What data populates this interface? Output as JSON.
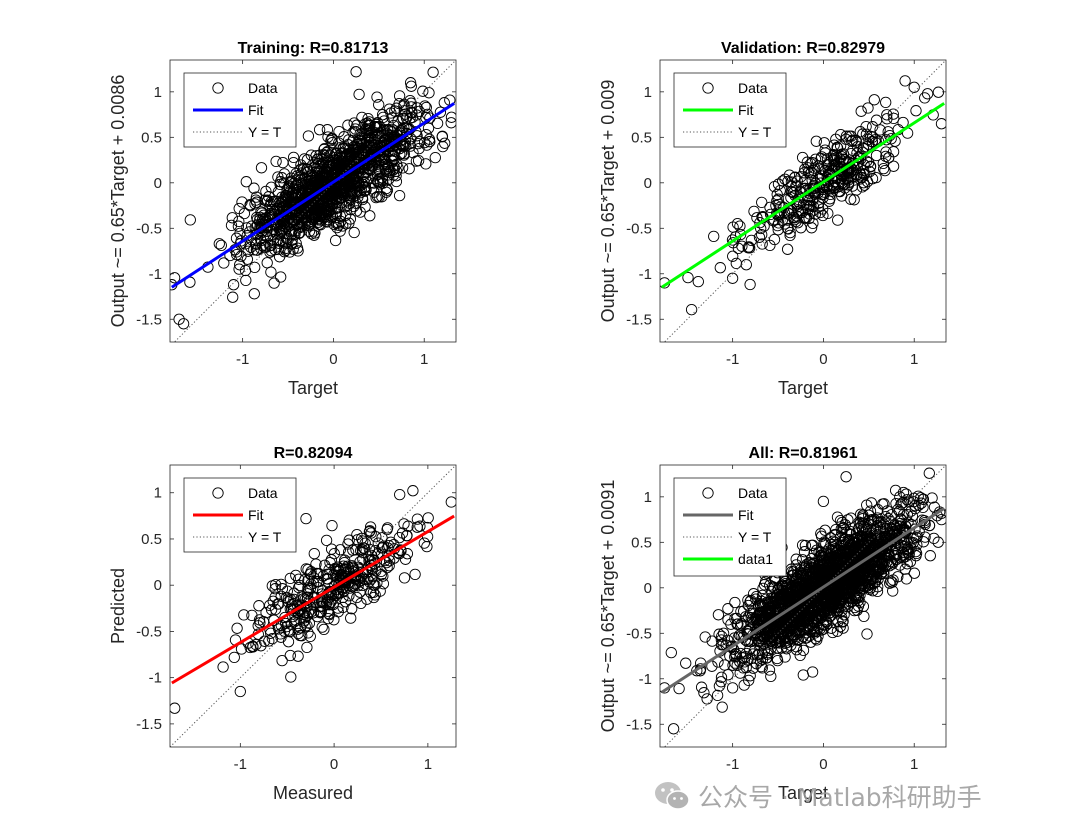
{
  "watermark": {
    "text": "公众号 · Matlab科研助手",
    "icon": "wechat-icon"
  },
  "chart_data": [
    {
      "type": "scatter",
      "id": "training",
      "title": "Training: R=0.81713",
      "xlabel": "Target",
      "ylabel": "Output ~= 0.65*Target + 0.0086",
      "xlim": [
        -1.8,
        1.35
      ],
      "ylim": [
        -1.75,
        1.35
      ],
      "xticks": [
        -1,
        0,
        1
      ],
      "xtick_labels": [
        "-1",
        "0",
        "1"
      ],
      "yticks": [
        1,
        0.5,
        0,
        -0.5,
        -1,
        -1.5
      ],
      "ytick_labels": [
        "1",
        "0.5",
        "0",
        "-0.5",
        "-1",
        "-1.5"
      ],
      "fit": {
        "slope": 0.65,
        "intercept": 0.0086,
        "color": "#0000ff"
      },
      "n_points": 1250,
      "spread_x": 0.5,
      "noise": 0.23,
      "outliers": [
        [
          0.25,
          1.22
        ],
        [
          -1.65,
          -1.55
        ],
        [
          -1.7,
          -1.5
        ],
        [
          1.3,
          0.72
        ],
        [
          -1.78,
          -1.12
        ],
        [
          -1.1,
          -1.12
        ],
        [
          0.85,
          1.1
        ]
      ],
      "legend": [
        {
          "label": "Data",
          "kind": "marker"
        },
        {
          "label": "Fit",
          "kind": "line",
          "color": "#0000ff"
        },
        {
          "label": "Y = T",
          "kind": "dotted"
        }
      ]
    },
    {
      "type": "scatter",
      "id": "validation",
      "title": "Validation: R=0.82979",
      "xlabel": "Target",
      "ylabel": "Output ~= 0.65*Target + 0.009",
      "xlim": [
        -1.8,
        1.35
      ],
      "ylim": [
        -1.75,
        1.35
      ],
      "xticks": [
        -1,
        0,
        1
      ],
      "xtick_labels": [
        "-1",
        "0",
        "1"
      ],
      "yticks": [
        1,
        0.5,
        0,
        -0.5,
        -1,
        -1.5
      ],
      "ytick_labels": [
        "1",
        "0.5",
        "0",
        "-0.5",
        "-1",
        "-1.5"
      ],
      "fit": {
        "slope": 0.65,
        "intercept": 0.009,
        "color": "#00ff00"
      },
      "n_points": 380,
      "spread_x": 0.45,
      "noise": 0.2,
      "outliers": [
        [
          -1.75,
          -1.1
        ],
        [
          1.3,
          0.65
        ],
        [
          0.9,
          1.12
        ],
        [
          1.0,
          1.05
        ],
        [
          -1.0,
          -1.05
        ],
        [
          -0.85,
          -0.9
        ]
      ],
      "legend": [
        {
          "label": "Data",
          "kind": "marker"
        },
        {
          "label": "Fit",
          "kind": "line",
          "color": "#00ff00"
        },
        {
          "label": "Y = T",
          "kind": "dotted"
        }
      ]
    },
    {
      "type": "scatter",
      "id": "test",
      "title": "R=0.82094",
      "xlabel": "Measured",
      "ylabel": "Predicted",
      "xlim": [
        -1.75,
        1.3
      ],
      "ylim": [
        -1.75,
        1.3
      ],
      "xticks": [
        -1,
        0,
        1
      ],
      "xtick_labels": [
        "-1",
        "0",
        "1"
      ],
      "yticks": [
        1,
        0.5,
        0,
        -0.5,
        -1,
        -1.5
      ],
      "ytick_labels": [
        "1",
        "0.5",
        "0",
        "-0.5",
        "-1",
        "-1.5"
      ],
      "fit": {
        "slope": 0.6,
        "intercept": -0.02,
        "color": "#ff0000"
      },
      "fit_range": [
        -1.75,
        1.3
      ],
      "n_points": 380,
      "spread_x": 0.45,
      "noise": 0.21,
      "outliers": [
        [
          -1.7,
          -1.33
        ],
        [
          1.25,
          0.9
        ],
        [
          -1.0,
          -1.15
        ],
        [
          -0.3,
          0.72
        ],
        [
          0.7,
          0.98
        ]
      ],
      "legend": [
        {
          "label": "Data",
          "kind": "marker"
        },
        {
          "label": "Fit",
          "kind": "line",
          "color": "#ff0000"
        },
        {
          "label": "Y = T",
          "kind": "dotted"
        }
      ]
    },
    {
      "type": "scatter",
      "id": "all",
      "title": "All: R=0.81961",
      "xlabel": "Target",
      "ylabel": "Output ~= 0.65*Target + 0.0091",
      "xlim": [
        -1.8,
        1.35
      ],
      "ylim": [
        -1.75,
        1.35
      ],
      "xticks": [
        -1,
        0,
        1
      ],
      "xtick_labels": [
        "-1",
        "0",
        "1"
      ],
      "yticks": [
        1,
        0.5,
        0,
        -0.5,
        -1,
        -1.5
      ],
      "ytick_labels": [
        "1",
        "0.5",
        "0",
        "-0.5",
        "-1",
        "-1.5"
      ],
      "fit": {
        "slope": 0.65,
        "intercept": 0.0091,
        "color": "#666666"
      },
      "n_points": 1900,
      "spread_x": 0.5,
      "noise": 0.23,
      "outliers": [
        [
          0.25,
          1.22
        ],
        [
          -1.65,
          -1.55
        ],
        [
          -1.75,
          -1.1
        ],
        [
          1.3,
          0.75
        ],
        [
          0.0,
          0.95
        ],
        [
          -1.0,
          -1.1
        ]
      ],
      "legend": [
        {
          "label": "Data",
          "kind": "marker"
        },
        {
          "label": "Fit",
          "kind": "line",
          "color": "#666666"
        },
        {
          "label": "Y = T",
          "kind": "dotted"
        },
        {
          "label": "data1",
          "kind": "line",
          "color": "#00ff00"
        }
      ]
    }
  ]
}
